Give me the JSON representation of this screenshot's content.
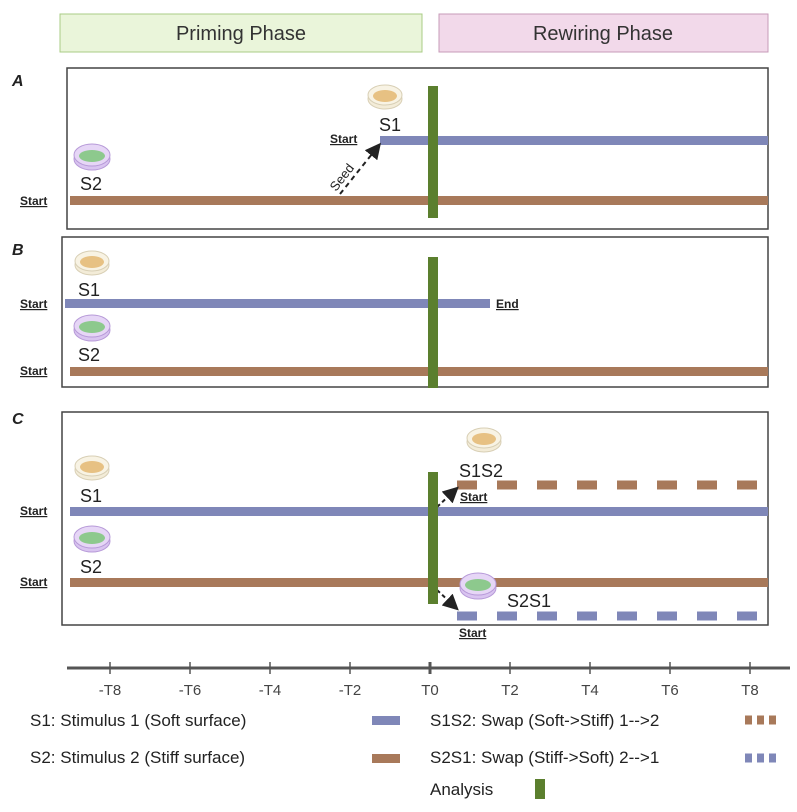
{
  "phases": {
    "priming": "Priming Phase",
    "rewiring": "Rewiring Phase"
  },
  "colors": {
    "s1": "#7f87b8",
    "s2": "#a8795a",
    "analysis": "#5b7f2e",
    "priming_bg": "#eaf5da",
    "rewiring_bg": "#f2d9ea"
  },
  "panels": {
    "a": {
      "label": "A",
      "start1": "Start",
      "start2": "Start",
      "s1": "S1",
      "s2": "S2",
      "seed": "Seed"
    },
    "b": {
      "label": "B",
      "start1": "Start",
      "start2": "Start",
      "end": "End",
      "s1": "S1",
      "s2": "S2"
    },
    "c": {
      "label": "C",
      "start1": "Start",
      "start2": "Start",
      "start3": "Start",
      "start4": "Start",
      "s1": "S1",
      "s2": "S2",
      "s1s2": "S1S2",
      "s2s1": "S2S1"
    }
  },
  "axis": {
    "ticks": [
      "-T8",
      "-T6",
      "-T4",
      "-T2",
      "T0",
      "T2",
      "T4",
      "T6",
      "T8"
    ]
  },
  "legend": {
    "s1": "S1: Stimulus 1 (Soft surface)",
    "s2": "S2: Stimulus 2 (Stiff surface)",
    "s1s2": "S1S2: Swap (Soft->Stiff) 1-->2",
    "s2s1": "S2S1: Swap (Stiff->Soft) 2-->1",
    "analysis": "Analysis"
  }
}
